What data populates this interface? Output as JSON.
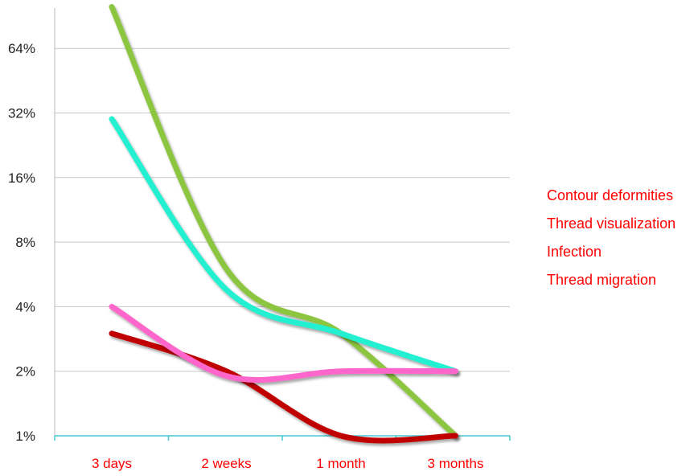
{
  "chart_data": {
    "type": "line",
    "title": "",
    "xlabel": "",
    "ylabel": "",
    "yscale": "log2",
    "ylim": [
      1,
      100
    ],
    "y_ticks": [
      {
        "value": 1,
        "label": "1%"
      },
      {
        "value": 2,
        "label": "2%"
      },
      {
        "value": 4,
        "label": "4%"
      },
      {
        "value": 8,
        "label": "8%"
      },
      {
        "value": 16,
        "label": "16%"
      },
      {
        "value": 32,
        "label": "32%"
      },
      {
        "value": 64,
        "label": "64%"
      }
    ],
    "categories": [
      "3 days",
      "2 weeks",
      "1 month",
      "3 months"
    ],
    "grid": true,
    "legend_position": "right",
    "label_color": "#ff0000",
    "series": [
      {
        "name": "Contour deformities",
        "color": "#8cc63f",
        "values": [
          100,
          6,
          3,
          1
        ],
        "dark_color": "#7a8f8a"
      },
      {
        "name": "Thread visualization",
        "color": "#21f0d0",
        "values": [
          30,
          4.8,
          3,
          2
        ],
        "dark_color": "#9aa6aa"
      },
      {
        "name": "Infection",
        "color": "#c00000",
        "values": [
          3,
          2,
          1,
          1
        ],
        "dark_color": "#7a0000"
      },
      {
        "name": "Thread migration",
        "color": "#ff66cc",
        "values": [
          4,
          1.9,
          2,
          2
        ],
        "dark_color": "#c9a9c0"
      }
    ]
  }
}
